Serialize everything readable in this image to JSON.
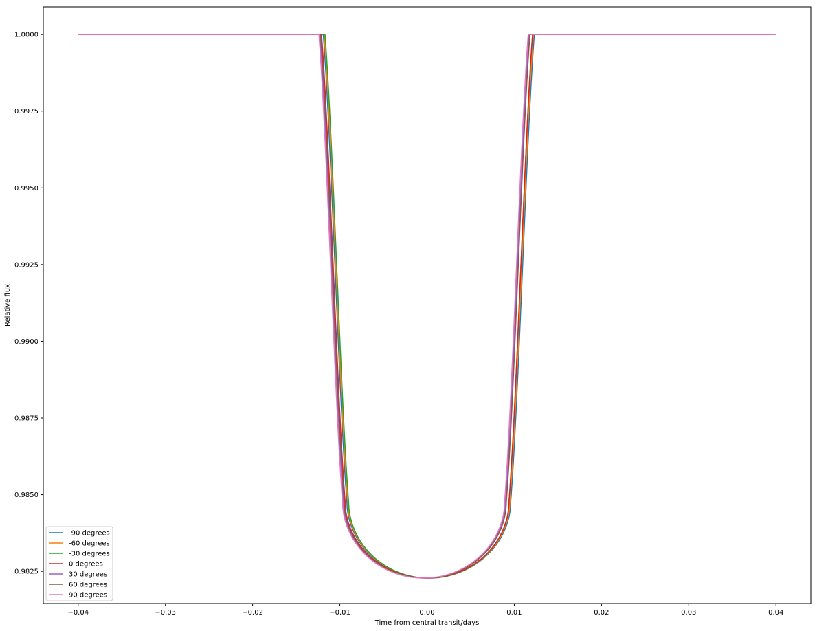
{
  "chart_data": {
    "type": "line",
    "title": "",
    "xlabel": "Time from central transit/days",
    "ylabel": "Relative flux",
    "xlim": [
      -0.044,
      0.044
    ],
    "ylim": [
      0.98145,
      1.0009
    ],
    "xticks": [
      -0.04,
      -0.03,
      -0.02,
      -0.01,
      0.0,
      0.01,
      0.02,
      0.03,
      0.04
    ],
    "xtick_labels": [
      "−0.04",
      "−0.03",
      "−0.02",
      "−0.01",
      "0.00",
      "0.01",
      "0.02",
      "0.03",
      "0.04"
    ],
    "yticks": [
      0.9825,
      0.985,
      0.9875,
      0.99,
      0.9925,
      0.995,
      0.9975,
      1.0
    ],
    "ytick_labels": [
      "0.9825",
      "0.9850",
      "0.9875",
      "0.9900",
      "0.9925",
      "0.9950",
      "0.9975",
      "1.0000"
    ],
    "grid": false,
    "legend_position": "lower-left",
    "x_range": [
      -0.04,
      0.04
    ],
    "baseline_flux": 1.0,
    "min_flux": 0.98228,
    "series": [
      {
        "name": "-90 degrees",
        "color": "#1f77b4",
        "ingress_start": -0.0119,
        "egress_end": 0.0123,
        "ingress_end": -0.0092,
        "egress_start": 0.0096
      },
      {
        "name": "-60 degrees",
        "color": "#ff7f0e",
        "ingress_start": -0.0118,
        "egress_end": 0.0122,
        "ingress_end": -0.0091,
        "egress_start": 0.0095
      },
      {
        "name": "-30 degrees",
        "color": "#2ca02c",
        "ingress_start": -0.0117,
        "egress_end": 0.0121,
        "ingress_end": -0.009,
        "egress_start": 0.0094
      },
      {
        "name": "0 degrees",
        "color": "#d62728",
        "ingress_start": -0.0121,
        "egress_end": 0.0121,
        "ingress_end": -0.0094,
        "egress_start": 0.0094
      },
      {
        "name": "30 degrees",
        "color": "#9467bd",
        "ingress_start": -0.0123,
        "egress_end": 0.0117,
        "ingress_end": -0.0096,
        "egress_start": 0.009
      },
      {
        "name": "60 degrees",
        "color": "#8c564b",
        "ingress_start": -0.0122,
        "egress_end": 0.0118,
        "ingress_end": -0.0095,
        "egress_start": 0.0091
      },
      {
        "name": "90 degrees",
        "color": "#e377c2",
        "ingress_start": -0.0124,
        "egress_end": 0.0116,
        "ingress_end": -0.0097,
        "egress_start": 0.0089
      }
    ]
  }
}
